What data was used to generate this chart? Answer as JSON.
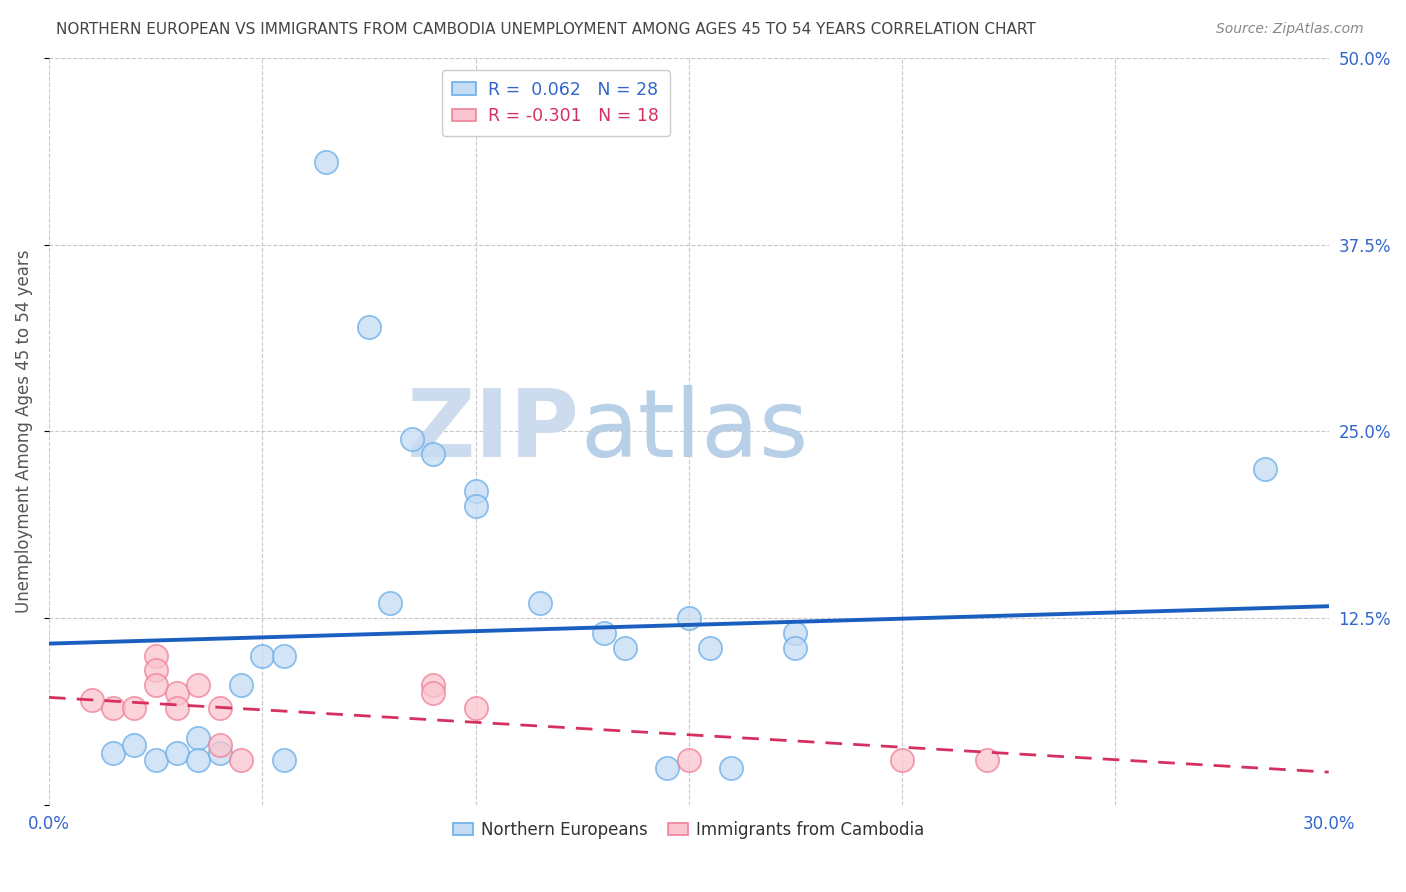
{
  "title": "NORTHERN EUROPEAN VS IMMIGRANTS FROM CAMBODIA UNEMPLOYMENT AMONG AGES 45 TO 54 YEARS CORRELATION CHART",
  "source": "Source: ZipAtlas.com",
  "ylabel": "Unemployment Among Ages 45 to 54 years",
  "xlim": [
    0.0,
    0.3
  ],
  "ylim": [
    0.0,
    0.5
  ],
  "xticks": [
    0.0,
    0.05,
    0.1,
    0.15,
    0.2,
    0.25,
    0.3
  ],
  "xticklabels": [
    "0.0%",
    "",
    "",
    "",
    "",
    "",
    "30.0%"
  ],
  "yticks_right": [
    0.0,
    0.125,
    0.25,
    0.375,
    0.5
  ],
  "yticklabels_right": [
    "",
    "12.5%",
    "25.0%",
    "37.5%",
    "50.0%"
  ],
  "blue_scatter": [
    [
      0.015,
      0.035
    ],
    [
      0.02,
      0.04
    ],
    [
      0.025,
      0.03
    ],
    [
      0.03,
      0.035
    ],
    [
      0.035,
      0.045
    ],
    [
      0.035,
      0.03
    ],
    [
      0.04,
      0.035
    ],
    [
      0.045,
      0.08
    ],
    [
      0.05,
      0.1
    ],
    [
      0.055,
      0.1
    ],
    [
      0.055,
      0.03
    ],
    [
      0.065,
      0.43
    ],
    [
      0.075,
      0.32
    ],
    [
      0.08,
      0.135
    ],
    [
      0.085,
      0.245
    ],
    [
      0.09,
      0.235
    ],
    [
      0.1,
      0.21
    ],
    [
      0.1,
      0.2
    ],
    [
      0.115,
      0.135
    ],
    [
      0.13,
      0.115
    ],
    [
      0.135,
      0.105
    ],
    [
      0.145,
      0.025
    ],
    [
      0.15,
      0.125
    ],
    [
      0.155,
      0.105
    ],
    [
      0.16,
      0.025
    ],
    [
      0.175,
      0.115
    ],
    [
      0.175,
      0.105
    ],
    [
      0.285,
      0.225
    ]
  ],
  "pink_scatter": [
    [
      0.01,
      0.07
    ],
    [
      0.015,
      0.065
    ],
    [
      0.02,
      0.065
    ],
    [
      0.025,
      0.1
    ],
    [
      0.025,
      0.09
    ],
    [
      0.025,
      0.08
    ],
    [
      0.03,
      0.075
    ],
    [
      0.03,
      0.065
    ],
    [
      0.035,
      0.08
    ],
    [
      0.04,
      0.065
    ],
    [
      0.04,
      0.04
    ],
    [
      0.045,
      0.03
    ],
    [
      0.09,
      0.08
    ],
    [
      0.09,
      0.075
    ],
    [
      0.1,
      0.065
    ],
    [
      0.15,
      0.03
    ],
    [
      0.2,
      0.03
    ],
    [
      0.22,
      0.03
    ]
  ],
  "blue_line_x": [
    0.0,
    0.3
  ],
  "blue_line_y": [
    0.108,
    0.133
  ],
  "pink_line_x": [
    0.0,
    0.3
  ],
  "pink_line_y": [
    0.072,
    0.022
  ],
  "blue_scatter_facecolor": "#c5dcf5",
  "blue_scatter_edgecolor": "#6aaee8",
  "pink_scatter_facecolor": "#fac5d0",
  "pink_scatter_edgecolor": "#f08098",
  "blue_line_color": "#1a5fbf",
  "pink_line_color": "#d63060",
  "legend_label_blue": "R =  0.062   N = 28",
  "legend_label_pink": "R = -0.301   N = 18",
  "bottom_legend_blue": "Northern Europeans",
  "bottom_legend_pink": "Immigrants from Cambodia",
  "watermark_ZIP": "ZIP",
  "watermark_atlas": "atlas",
  "background_color": "#ffffff",
  "grid_color": "#c8c8c8",
  "title_color": "#444444",
  "source_color": "#888888",
  "axis_label_color": "#555555",
  "tick_color": "#3366cc"
}
